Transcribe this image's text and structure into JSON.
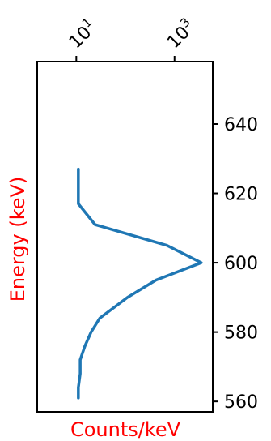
{
  "chart_data": {
    "type": "line",
    "orientation": "horizontal-values",
    "x": [
      627,
      617,
      611,
      605,
      600,
      595,
      590,
      584,
      580,
      576,
      572,
      568,
      564,
      561
    ],
    "y": [
      11,
      11,
      24,
      700,
      3500,
      420,
      110,
      30,
      20,
      15,
      12,
      12,
      11,
      11
    ],
    "series": [
      {
        "name": "",
        "color": "#1f77b4"
      }
    ],
    "xlabel": "Counts/keV",
    "ylabel": "Energy (keV)",
    "label_color": "#ff0000",
    "energy_axis": {
      "range": [
        557,
        658
      ],
      "ticks": [
        560,
        580,
        600,
        620,
        640
      ],
      "tick_labels": [
        "560",
        "580",
        "600",
        "620",
        "640"
      ],
      "side": "right"
    },
    "counts_axis": {
      "scale": "log",
      "range": [
        1.6,
        6000
      ],
      "ticks": [
        10,
        1000
      ],
      "tick_labels": [
        {
          "base": "10",
          "exp": "1"
        },
        {
          "base": "10",
          "exp": "3"
        }
      ],
      "side": "top",
      "tick_label_rotation": "45 degrees"
    },
    "grid": false,
    "legend": "none"
  }
}
